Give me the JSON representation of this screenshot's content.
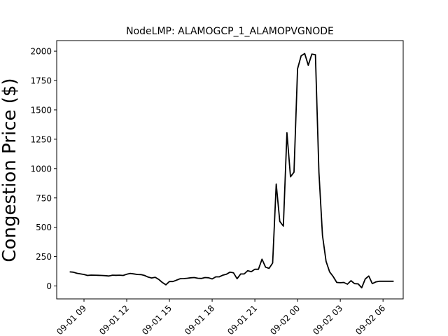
{
  "chart_data": {
    "type": "line",
    "title": "NodeLMP: ALAMOGCP_1_ALAMOPVGNODE",
    "xlabel": "",
    "ylabel": "Congestion Price ($)",
    "xlim": [
      "2020-09-01 07:05",
      "2020-09-02 07:25"
    ],
    "ylim": [
      -110,
      2090
    ],
    "yticks": [
      0,
      250,
      500,
      750,
      1000,
      1250,
      1500,
      1750,
      2000
    ],
    "xticks": [
      {
        "value": "2020-09-01 09:00",
        "label": "09-01 09"
      },
      {
        "value": "2020-09-01 12:00",
        "label": "09-01 12"
      },
      {
        "value": "2020-09-01 15:00",
        "label": "09-01 15"
      },
      {
        "value": "2020-09-01 18:00",
        "label": "09-01 18"
      },
      {
        "value": "2020-09-01 21:00",
        "label": "09-01 21"
      },
      {
        "value": "2020-09-02 00:00",
        "label": "09-02 00"
      },
      {
        "value": "2020-09-02 03:00",
        "label": "09-02 03"
      },
      {
        "value": "2020-09-02 06:00",
        "label": "09-02 06"
      }
    ],
    "grid": false,
    "series": [
      {
        "color": "#000000",
        "x": [
          "2020-09-01 08:00",
          "2020-09-01 08:15",
          "2020-09-01 08:30",
          "2020-09-01 08:45",
          "2020-09-01 09:00",
          "2020-09-01 09:15",
          "2020-09-01 09:30",
          "2020-09-01 09:45",
          "2020-09-01 10:00",
          "2020-09-01 10:15",
          "2020-09-01 10:30",
          "2020-09-01 10:45",
          "2020-09-01 11:00",
          "2020-09-01 11:15",
          "2020-09-01 11:30",
          "2020-09-01 11:45",
          "2020-09-01 12:00",
          "2020-09-01 12:15",
          "2020-09-01 12:30",
          "2020-09-01 12:45",
          "2020-09-01 13:00",
          "2020-09-01 13:15",
          "2020-09-01 13:30",
          "2020-09-01 13:45",
          "2020-09-01 14:00",
          "2020-09-01 14:15",
          "2020-09-01 14:30",
          "2020-09-01 14:45",
          "2020-09-01 15:00",
          "2020-09-01 15:15",
          "2020-09-01 15:30",
          "2020-09-01 15:45",
          "2020-09-01 16:00",
          "2020-09-01 16:15",
          "2020-09-01 16:30",
          "2020-09-01 16:45",
          "2020-09-01 17:00",
          "2020-09-01 17:15",
          "2020-09-01 17:30",
          "2020-09-01 17:45",
          "2020-09-01 18:00",
          "2020-09-01 18:15",
          "2020-09-01 18:30",
          "2020-09-01 18:45",
          "2020-09-01 19:00",
          "2020-09-01 19:15",
          "2020-09-01 19:30",
          "2020-09-01 19:45",
          "2020-09-01 20:00",
          "2020-09-01 20:15",
          "2020-09-01 20:30",
          "2020-09-01 20:45",
          "2020-09-01 21:00",
          "2020-09-01 21:15",
          "2020-09-01 21:30",
          "2020-09-01 21:45",
          "2020-09-01 22:00",
          "2020-09-01 22:15",
          "2020-09-01 22:30",
          "2020-09-01 22:45",
          "2020-09-01 23:00",
          "2020-09-01 23:15",
          "2020-09-01 23:30",
          "2020-09-01 23:45",
          "2020-09-02 00:00",
          "2020-09-02 00:15",
          "2020-09-02 00:30",
          "2020-09-02 00:45",
          "2020-09-02 01:00",
          "2020-09-02 01:15",
          "2020-09-02 01:30",
          "2020-09-02 01:45",
          "2020-09-02 02:00",
          "2020-09-02 02:15",
          "2020-09-02 02:30",
          "2020-09-02 02:45",
          "2020-09-02 03:00",
          "2020-09-02 03:15",
          "2020-09-02 03:30",
          "2020-09-02 03:45",
          "2020-09-02 04:00",
          "2020-09-02 04:15",
          "2020-09-02 04:30",
          "2020-09-02 04:45",
          "2020-09-02 05:00",
          "2020-09-02 05:15",
          "2020-09-02 05:30",
          "2020-09-02 05:45",
          "2020-09-02 06:00",
          "2020-09-02 06:15",
          "2020-09-02 06:30",
          "2020-09-02 06:45"
        ],
        "values": [
          120,
          118,
          108,
          103,
          98,
          90,
          93,
          92,
          91,
          90,
          88,
          85,
          92,
          91,
          92,
          90,
          100,
          107,
          103,
          98,
          97,
          90,
          76,
          68,
          74,
          56,
          30,
          10,
          38,
          38,
          50,
          62,
          63,
          66,
          70,
          72,
          66,
          64,
          72,
          70,
          60,
          78,
          78,
          92,
          100,
          118,
          112,
          62,
          102,
          102,
          130,
          122,
          143,
          142,
          228,
          160,
          150,
          195,
          868,
          550,
          510,
          1305,
          930,
          970,
          1850,
          1960,
          1980,
          1880,
          1975,
          1970,
          970,
          430,
          210,
          120,
          80,
          30,
          28,
          30,
          15,
          45,
          20,
          18,
          -15,
          60,
          85,
          20,
          35,
          40,
          40,
          40,
          40,
          40
        ]
      }
    ]
  }
}
